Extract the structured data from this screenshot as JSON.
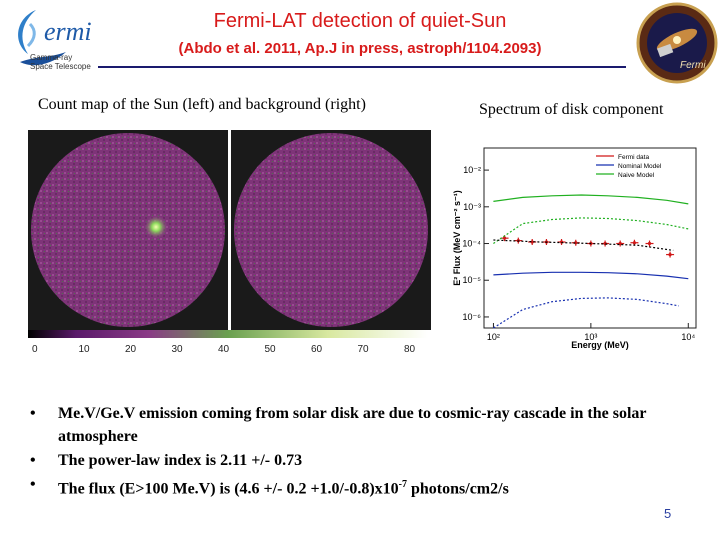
{
  "header": {
    "title": "Fermi-LAT detection of quiet-Sun",
    "subtitle": "(Abdo et al. 2011, Ap.J in press, astroph/1104.2093)"
  },
  "logo_left": {
    "wordmark": "ermi",
    "line1": "Gamma-ray",
    "line2": "Space Telescope",
    "icon": "fermi-swirl-logo"
  },
  "logo_right": {
    "text": "Fermi",
    "icon": "fermi-mission-patch"
  },
  "figure_left": {
    "caption": "Count map of the Sun (left) and background (right)",
    "colorbar_ticks": [
      "0",
      "10",
      "20",
      "30",
      "40",
      "50",
      "60",
      "70",
      "80"
    ]
  },
  "figure_right": {
    "caption": "Spectrum of disk component"
  },
  "chart_data": {
    "type": "line",
    "xlabel": "Energy (MeV)",
    "ylabel": "E² Flux (MeV cm⁻² s⁻¹)",
    "xscale": "log",
    "yscale": "log",
    "xlim": [
      80,
      12000
    ],
    "ylim": [
      5e-07,
      0.04
    ],
    "x_ticks": [
      "10²",
      "10³",
      "10⁴"
    ],
    "y_ticks": [
      "10⁻²",
      "10⁻³",
      "10⁻⁴",
      "10⁻⁵",
      "10⁻⁶"
    ],
    "legend_position": "top-right",
    "colors": {
      "fermi": "#d01818",
      "nominal": "#1830b0",
      "naive": "#20b020"
    },
    "series": [
      {
        "name": "Fermi data",
        "kind": "points",
        "x": [
          130,
          180,
          250,
          350,
          500,
          700,
          1000,
          1400,
          2000,
          2800,
          4000,
          6500
        ],
        "y": [
          0.00014,
          0.00012,
          0.00011,
          0.00011,
          0.00011,
          0.000105,
          0.0001,
          0.0001,
          0.0001,
          0.000105,
          0.0001,
          5e-05
        ]
      },
      {
        "name": "Nominal Model",
        "kind": "solid",
        "x": [
          100,
          200,
          400,
          800,
          1500,
          3000,
          6000,
          10000
        ],
        "y": [
          1.4e-05,
          1.55e-05,
          1.65e-05,
          1.65e-05,
          1.6e-05,
          1.5e-05,
          1.3e-05,
          1.1e-05
        ]
      },
      {
        "name": "",
        "kind": "dotted-blue",
        "x": [
          100,
          200,
          400,
          800,
          1500,
          3000,
          6000,
          8000
        ],
        "y": [
          5e-07,
          1.6e-06,
          2.6e-06,
          3.2e-06,
          3.3e-06,
          3e-06,
          2.3e-06,
          2e-06
        ]
      },
      {
        "name": "Naive Model",
        "kind": "solid",
        "x": [
          100,
          200,
          400,
          800,
          1500,
          3000,
          6000,
          10000
        ],
        "y": [
          0.0014,
          0.0018,
          0.002,
          0.0021,
          0.002,
          0.0018,
          0.0015,
          0.0012
        ]
      },
      {
        "name": "",
        "kind": "dotted-green",
        "x": [
          100,
          200,
          400,
          800,
          1500,
          3000,
          6000,
          10000
        ],
        "y": [
          0.0001,
          0.00035,
          0.00045,
          0.0005,
          0.00048,
          0.00042,
          0.00033,
          0.00025
        ]
      },
      {
        "name": "",
        "kind": "dotted-black",
        "x": [
          100,
          300,
          1000,
          3000,
          7000
        ],
        "y": [
          0.000125,
          0.00011,
          0.0001,
          9e-05,
          6.5e-05
        ]
      }
    ]
  },
  "bullets": [
    {
      "text": "Me.V/Ge.V emission coming from solar disk are due to cosmic-ray cascade in the solar atmosphere"
    },
    {
      "text": "The power-law index is 2.11 +/- 0.73"
    },
    {
      "pre": "The flux (E>100 Me.V) is (4.6 +/- 0.2 +1.0/-0.8)x10",
      "sup": "-7",
      "post": " photons/cm2/s"
    }
  ],
  "bullet_symbol": "•",
  "page_number": "5"
}
